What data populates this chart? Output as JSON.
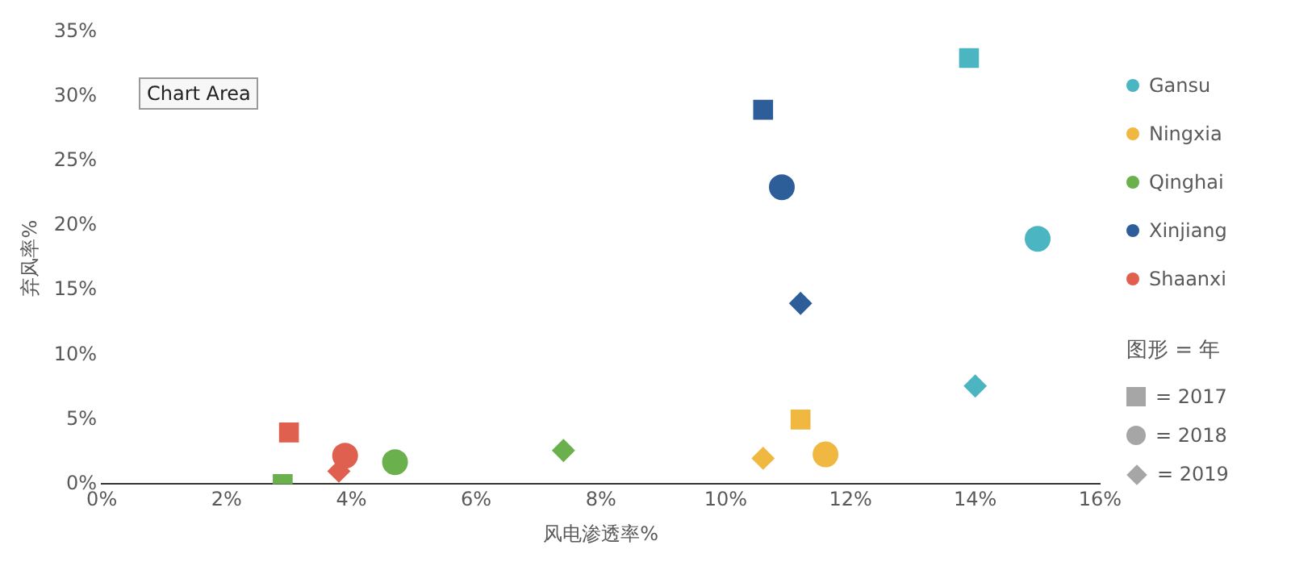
{
  "chart_data": {
    "type": "scatter",
    "xlabel": "风电渗透率%",
    "ylabel": "弃风率%",
    "legend_title": "图形 = 年",
    "legend": "right",
    "grid": false,
    "annotations": [
      "Chart Area",
      "= 2017",
      "= 2018",
      "= 2019"
    ],
    "xlim": [
      0,
      16
    ],
    "ylim": [
      0,
      35
    ],
    "xticks": [
      {
        "value": 0,
        "label": "0%"
      },
      {
        "value": 2,
        "label": "2%"
      },
      {
        "value": 4,
        "label": "4%"
      },
      {
        "value": 6,
        "label": "6%"
      },
      {
        "value": 8,
        "label": "8%"
      },
      {
        "value": 10,
        "label": "10%"
      },
      {
        "value": 12,
        "label": "12%"
      },
      {
        "value": 14,
        "label": "14%"
      },
      {
        "value": 16,
        "label": "16%"
      }
    ],
    "yticks": [
      {
        "value": 0,
        "label": "0%"
      },
      {
        "value": 5,
        "label": "5%"
      },
      {
        "value": 10,
        "label": "10%"
      },
      {
        "value": 15,
        "label": "15%"
      },
      {
        "value": 20,
        "label": "20%"
      },
      {
        "value": 25,
        "label": "25%"
      },
      {
        "value": 30,
        "label": "30%"
      },
      {
        "value": 35,
        "label": "35%"
      }
    ],
    "series": [
      {
        "name": "Gansu",
        "marker": "square",
        "color": "#4bb5c1",
        "x": [
          13.9
        ],
        "values": [
          33
        ]
      },
      {
        "marker": "circle",
        "color": "#4bb5c1",
        "x": [
          15.0
        ],
        "values": [
          19
        ]
      },
      {
        "marker": "diamond",
        "color": "#4bb5c1",
        "x": [
          14.0
        ],
        "values": [
          7.6
        ]
      },
      {
        "name": "Ningxia",
        "marker": "square",
        "color": "#f0b840",
        "x": [
          11.2
        ],
        "values": [
          5
        ]
      },
      {
        "marker": "circle",
        "color": "#f0b840",
        "x": [
          11.6
        ],
        "values": [
          2.3
        ]
      },
      {
        "marker": "diamond",
        "color": "#f0b840",
        "x": [
          10.6
        ],
        "values": [
          2
        ]
      },
      {
        "name": "Qinghai",
        "marker": "square",
        "color": "#6ab04c",
        "x": [
          2.9
        ],
        "values": [
          0
        ]
      },
      {
        "marker": "circle",
        "color": "#6ab04c",
        "x": [
          4.7
        ],
        "values": [
          1.7
        ]
      },
      {
        "marker": "diamond",
        "color": "#6ab04c",
        "x": [
          7.4
        ],
        "values": [
          2.6
        ]
      },
      {
        "name": "Xinjiang",
        "marker": "square",
        "color": "#2e5e9a",
        "x": [
          10.6
        ],
        "values": [
          29
        ]
      },
      {
        "marker": "circle",
        "color": "#2e5e9a",
        "x": [
          10.9
        ],
        "values": [
          23
        ]
      },
      {
        "marker": "diamond",
        "color": "#2e5e9a",
        "x": [
          11.2
        ],
        "values": [
          14
        ]
      },
      {
        "name": "Shaanxi",
        "marker": "square",
        "color": "#e0604f",
        "x": [
          3.0
        ],
        "values": [
          4
        ]
      },
      {
        "marker": "circle",
        "color": "#e0604f",
        "x": [
          3.9
        ],
        "values": [
          2.2
        ]
      },
      {
        "marker": "diamond",
        "color": "#e0604f",
        "x": [
          3.8
        ],
        "values": [
          1.0
        ]
      }
    ]
  }
}
